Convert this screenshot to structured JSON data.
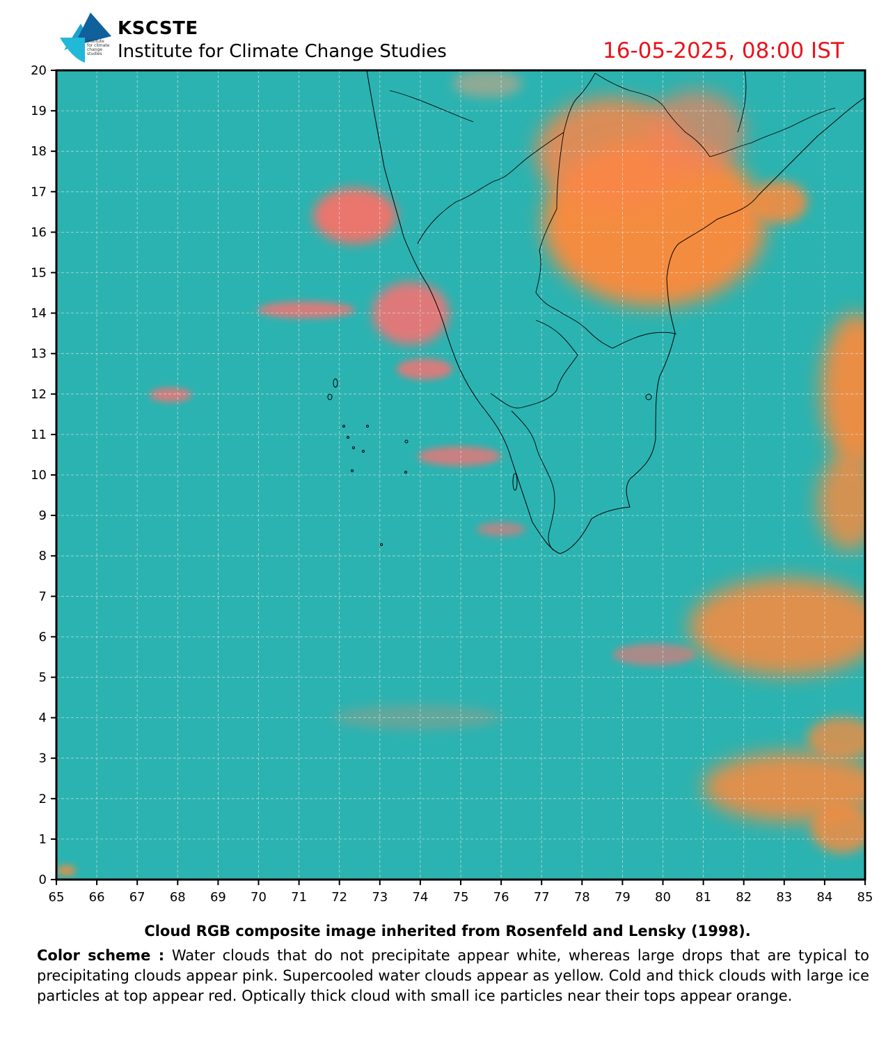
{
  "header": {
    "logo_alt": "institute for climate change studies",
    "org_name": "KSCSTE",
    "institute_name": "Institute for Climate Change Studies",
    "timestamp": "16-05-2025, 08:00 IST"
  },
  "map": {
    "lon_ticks": [
      "65",
      "66",
      "67",
      "68",
      "69",
      "70",
      "71",
      "72",
      "73",
      "74",
      "75",
      "76",
      "77",
      "78",
      "79",
      "80",
      "81",
      "82",
      "83",
      "84",
      "85"
    ],
    "lat_ticks": [
      "0",
      "1",
      "2",
      "3",
      "4",
      "5",
      "6",
      "7",
      "8",
      "9",
      "10",
      "11",
      "12",
      "13",
      "14",
      "15",
      "16",
      "17",
      "18",
      "19",
      "20"
    ],
    "lon_range": [
      65,
      85
    ],
    "lat_range": [
      0,
      20
    ],
    "gridlines": true,
    "colors": {
      "sea_background": "#2bb3b1",
      "precipitating_pink": "#ff6f6f",
      "ice_orange": "#ff8c3a",
      "coastline": "#000000",
      "gridline": "#e8e8e8"
    }
  },
  "footer": {
    "caption": "Cloud RGB composite image inherited from Rosenfeld and Lensky (1998).",
    "scheme_label": "Color scheme :",
    "scheme_text": " Water clouds that do not precipitate appear white, whereas large drops that are typical to precipitating clouds appear pink. Supercooled water clouds appear as yellow. Cold and thick clouds with large ice particles at top appear red. Optically thick cloud with small ice particles near their tops appear orange."
  }
}
